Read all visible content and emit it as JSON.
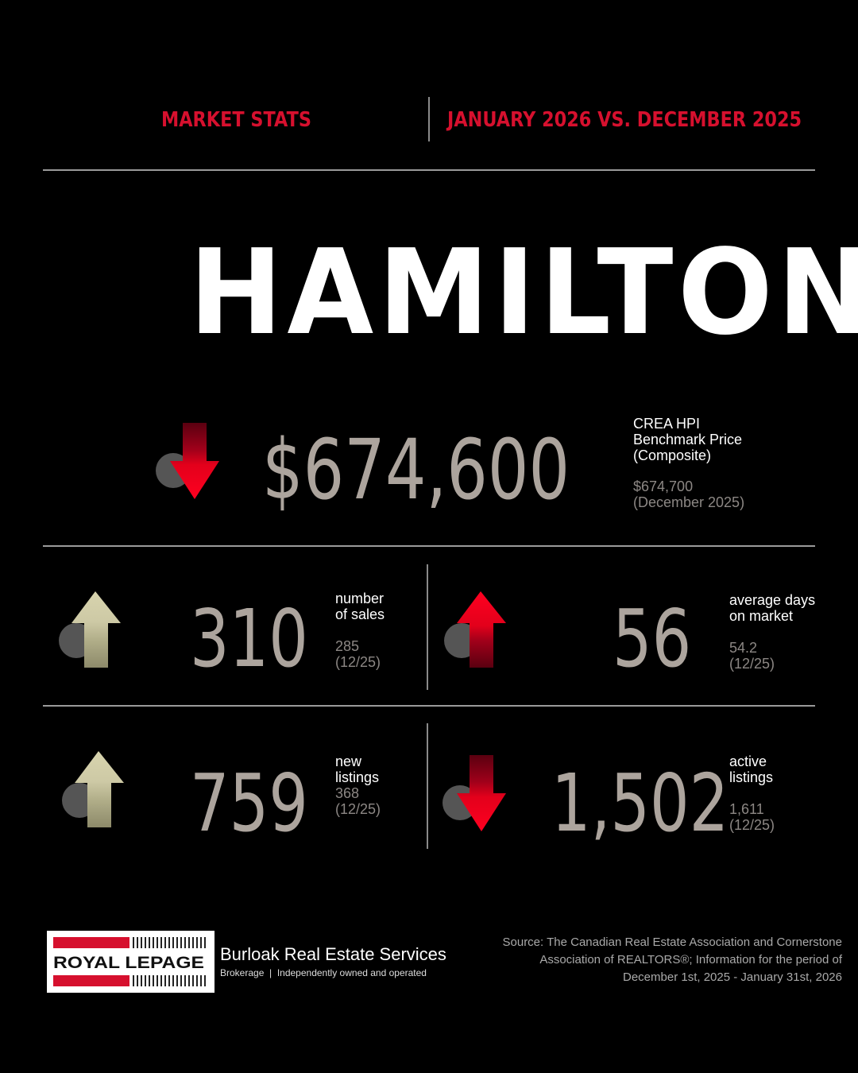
{
  "header": {
    "left_title": "MARKET STATS",
    "right_title": "JANUARY 2026 VS. DECEMBER 2025"
  },
  "city": "HAMILTON",
  "benchmark": {
    "value": "$674,600",
    "label": "CREA HPI\nBenchmark Price\n(Composite)",
    "previous": "$674,700\n(December 2025)",
    "trend": "down",
    "icon": "down-arrow-icon"
  },
  "stats": [
    {
      "value": "310",
      "label": "number\nof sales",
      "previous": "285\n(12/25)",
      "trend": "up",
      "icon": "up-arrow-icon"
    },
    {
      "value": "56",
      "label": "average days\non market",
      "previous": "54.2\n(12/25)",
      "trend": "up",
      "icon": "up-arrow-icon"
    },
    {
      "value": "759",
      "label": "new\nlistings",
      "previous": "368\n(12/25)",
      "trend": "up",
      "icon": "up-arrow-icon"
    },
    {
      "value": "1,502",
      "label": "active\nlistings",
      "previous": "1,611\n(12/25)",
      "trend": "down",
      "icon": "down-arrow-icon"
    }
  ],
  "footer": {
    "logo_text": "ROYAL LEPAGE",
    "company": "Burloak Real Estate Services",
    "tagline": "Brokerage  |  Independently owned and operated",
    "source": "Source: The Canadian Real Estate Association and Cornerstone Association of REALTORS®; Information for the period of December 1st, 2025 - January 31st, 2026"
  },
  "colors": {
    "accent_red": "#e3001b",
    "up_neutral": "#c9c5a0",
    "number_gray": "#aca49d",
    "background": "#000000"
  }
}
